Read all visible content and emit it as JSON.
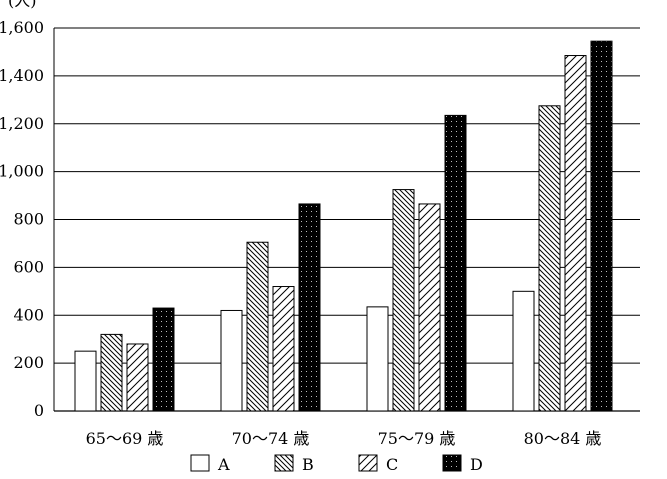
{
  "chart_data": {
    "type": "bar",
    "title": "",
    "xlabel": "",
    "ylabel": "",
    "y_unit": "(人)",
    "ylim": [
      0,
      1600
    ],
    "yticks": [
      0,
      200,
      400,
      600,
      800,
      1000,
      1200,
      1400,
      1600
    ],
    "ytick_labels": [
      "0",
      "200",
      "400",
      "600",
      "800",
      "1,000",
      "1,200",
      "1,400",
      "1,600"
    ],
    "categories": [
      "65～69 歳",
      "70～74 歳",
      "75～79 歳",
      "80～84 歳"
    ],
    "grid": true,
    "legend_position": "bottom",
    "series": [
      {
        "name": "A",
        "pattern": "blank",
        "values": [
          250,
          420,
          435,
          500
        ]
      },
      {
        "name": "B",
        "pattern": "dense-diagonal-hatch",
        "values": [
          320,
          705,
          925,
          1275
        ]
      },
      {
        "name": "C",
        "pattern": "diagonal-hatch",
        "values": [
          280,
          520,
          865,
          1485
        ]
      },
      {
        "name": "D",
        "pattern": "dotted-black",
        "values": [
          430,
          865,
          1235,
          1545
        ]
      }
    ]
  }
}
